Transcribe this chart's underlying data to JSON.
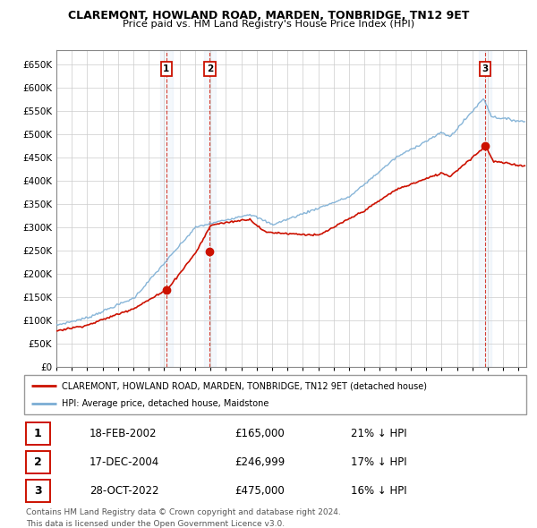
{
  "title": "CLAREMONT, HOWLAND ROAD, MARDEN, TONBRIDGE, TN12 9ET",
  "subtitle": "Price paid vs. HM Land Registry's House Price Index (HPI)",
  "hpi_color": "#7aadd4",
  "price_color": "#cc1100",
  "ylim": [
    0,
    680000
  ],
  "yticks": [
    0,
    50000,
    100000,
    150000,
    200000,
    250000,
    300000,
    350000,
    400000,
    450000,
    500000,
    550000,
    600000,
    650000
  ],
  "transactions": [
    {
      "date": "18-FEB-2002",
      "price": 165000,
      "label": "1",
      "hpi_pct": "21% ↓ HPI"
    },
    {
      "date": "17-DEC-2004",
      "price": 246999,
      "label": "2",
      "hpi_pct": "17% ↓ HPI"
    },
    {
      "date": "28-OCT-2022",
      "price": 475000,
      "label": "3",
      "hpi_pct": "16% ↓ HPI"
    }
  ],
  "legend_label1": "CLAREMONT, HOWLAND ROAD, MARDEN, TONBRIDGE, TN12 9ET (detached house)",
  "legend_label2": "HPI: Average price, detached house, Maidstone",
  "footer1": "Contains HM Land Registry data © Crown copyright and database right 2024.",
  "footer2": "This data is licensed under the Open Government Licence v3.0."
}
